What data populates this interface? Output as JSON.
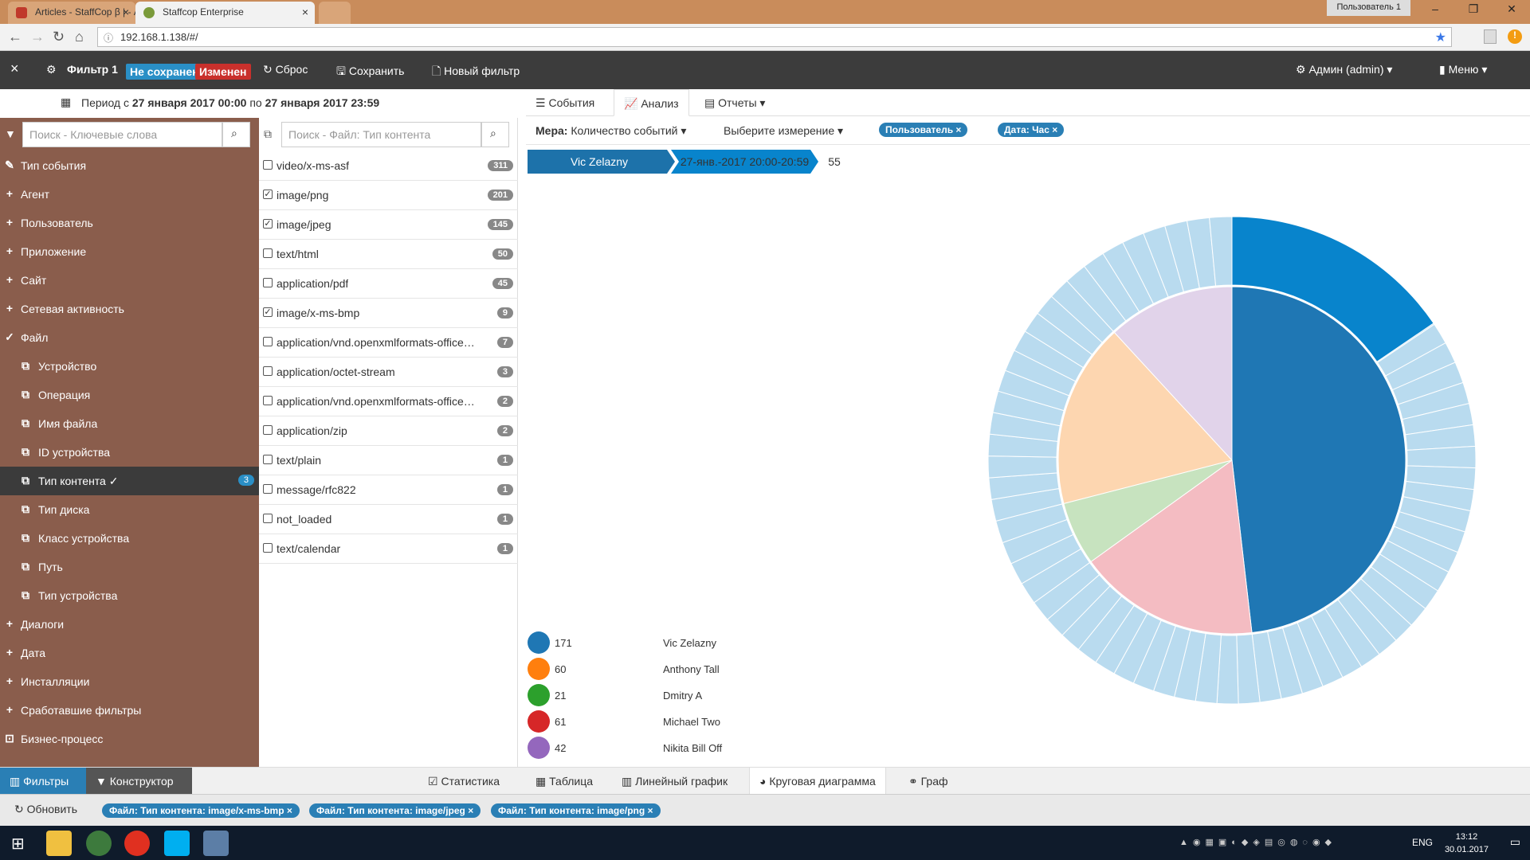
{
  "browser": {
    "tabs": [
      {
        "title": "Articles - StaffCop β | - A"
      },
      {
        "title": "Staffcop Enterprise"
      }
    ],
    "window_user": "Пользователь 1",
    "url": "192.168.1.138/#/"
  },
  "header": {
    "filter_title": "Фильтр 1",
    "unsaved_label": "Не сохранен",
    "changed_label": "Изменен",
    "reset_label": "Сброс",
    "save_label": "Сохранить",
    "new_filter_label": "Новый фильтр",
    "user_label": "Админ (admin)",
    "menu_label": "Меню"
  },
  "period": {
    "prefix": "Период с",
    "from": "27 января 2017 00:00",
    "middle": "по",
    "to": "27 января 2017 23:59"
  },
  "sidebar": {
    "search_placeholder": "Поиск - Ключевые слова",
    "items": [
      {
        "label": "Тип события",
        "icon": "event-icon"
      },
      {
        "label": "Агент",
        "icon": "plus-icon"
      },
      {
        "label": "Пользователь",
        "icon": "plus-icon"
      },
      {
        "label": "Приложение",
        "icon": "plus-icon"
      },
      {
        "label": "Сайт",
        "icon": "plus-icon"
      },
      {
        "label": "Сетевая активность",
        "icon": "plus-icon"
      },
      {
        "label": "Файл",
        "icon": "check-icon"
      },
      {
        "label": "Устройство",
        "icon": "copy-icon"
      },
      {
        "label": "Операция",
        "icon": "copy-icon"
      },
      {
        "label": "Имя файла",
        "icon": "copy-icon"
      },
      {
        "label": "ID устройства",
        "icon": "copy-icon"
      },
      {
        "label": "Тип контента ✓",
        "icon": "copy-icon",
        "count": "3"
      },
      {
        "label": "Тип диска",
        "icon": "copy-icon"
      },
      {
        "label": "Класс устройства",
        "icon": "copy-icon"
      },
      {
        "label": "Путь",
        "icon": "copy-icon"
      },
      {
        "label": "Тип устройства",
        "icon": "copy-icon"
      },
      {
        "label": "Диалоги",
        "icon": "plus-icon"
      },
      {
        "label": "Дата",
        "icon": "plus-icon"
      },
      {
        "label": "Инсталляции",
        "icon": "plus-icon"
      },
      {
        "label": "Сработавшие фильтры",
        "icon": "plus-icon"
      },
      {
        "label": "Бизнес-процесс",
        "icon": "process-icon"
      }
    ]
  },
  "content_types": {
    "search_placeholder": "Поиск - Файл: Тип контента",
    "rows": [
      {
        "label": "video/x-ms-asf",
        "count": "311",
        "checked": false
      },
      {
        "label": "image/png",
        "count": "201",
        "checked": true
      },
      {
        "label": "image/jpeg",
        "count": "145",
        "checked": true
      },
      {
        "label": "text/html",
        "count": "50",
        "checked": false
      },
      {
        "label": "application/pdf",
        "count": "45",
        "checked": false
      },
      {
        "label": "image/x-ms-bmp",
        "count": "9",
        "checked": true
      },
      {
        "label": "application/vnd.openxmlformats-officedocument",
        "count": "7",
        "checked": false
      },
      {
        "label": "application/octet-stream",
        "count": "3",
        "checked": false
      },
      {
        "label": "application/vnd.openxmlformats-officedocument",
        "count": "2",
        "checked": false
      },
      {
        "label": "application/zip",
        "count": "2",
        "checked": false
      },
      {
        "label": "text/plain",
        "count": "1",
        "checked": false
      },
      {
        "label": "message/rfc822",
        "count": "1",
        "checked": false
      },
      {
        "label": "not_loaded",
        "count": "1",
        "checked": false
      },
      {
        "label": "text/calendar",
        "count": "1",
        "checked": false
      }
    ]
  },
  "analysis": {
    "tabs": [
      {
        "label": "События"
      },
      {
        "label": "Анализ"
      },
      {
        "label": "Отчеты"
      }
    ],
    "measure_prefix": "Мера:",
    "measure_value": "Количество событий",
    "dimension_label": "Выберите измерение",
    "dimension_pills": [
      "Пользователь ×",
      "Дата: Час ×"
    ],
    "breadcrumb": [
      "Vic Zelazny",
      "27-янв.-2017 20:00-20:59"
    ],
    "breadcrumb_value": "55"
  },
  "chart_data": {
    "type": "pie",
    "categories": [
      "Vic Zelazny",
      "Anthony Tall",
      "Dmitry A",
      "Michael Two",
      "Nikita Bill Off"
    ],
    "values": [
      171,
      60,
      21,
      61,
      42
    ],
    "legend_colors": [
      "#1f77b4",
      "#ff7f0e",
      "#2ca02c",
      "#d62728",
      "#9467bd"
    ],
    "slice_colors": [
      "#1f77b4",
      "#f4bcc2",
      "#c7e3bf",
      "#fdd6b0",
      "#e1d3ea"
    ],
    "outer_ring_color": "#b9dbef",
    "highlight_color": "#0884cc",
    "highlight_value": 55,
    "legend_position": "bottom-left"
  },
  "bottom_tabs": {
    "left": [
      "Фильтры",
      "Конструктор"
    ],
    "stats": "Статистика",
    "views": [
      "Таблица",
      "Линейный график",
      "Круговая диаграмма",
      "Граф"
    ]
  },
  "footer": {
    "refresh_label": "Обновить",
    "filters": [
      "Файл: Тип контента: image/x-ms-bmp ×",
      "Файл: Тип контента: image/jpeg ×",
      "Файл: Тип контента: image/png ×"
    ]
  },
  "taskbar": {
    "lang": "ENG",
    "time": "13:12",
    "date": "30.01.2017"
  }
}
